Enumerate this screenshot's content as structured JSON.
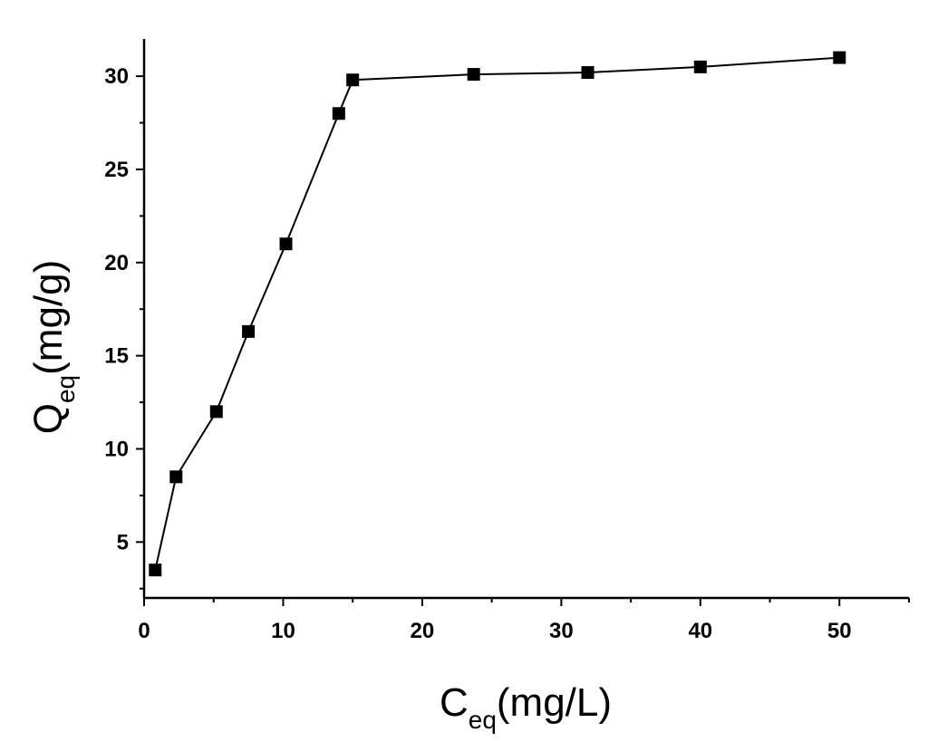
{
  "chart_data": {
    "type": "line",
    "xlabel": {
      "main": "C",
      "sub": "eq",
      "unit": "(mg/L)"
    },
    "ylabel": {
      "main": "Q",
      "sub": "eq",
      "unit": "(mg/g)"
    },
    "xlim": [
      0,
      55
    ],
    "ylim": [
      2,
      32
    ],
    "xticks": [
      0,
      10,
      20,
      30,
      40,
      50
    ],
    "yticks": [
      5,
      10,
      15,
      20,
      25,
      30
    ],
    "grid": false,
    "marker": "square",
    "color": "#000000",
    "series": [
      {
        "x": [
          0.8,
          2.3,
          5.2,
          7.5,
          10.2,
          14.0,
          15.0,
          23.7,
          31.9,
          40.0,
          50.0
        ],
        "y": [
          3.5,
          8.5,
          12.0,
          16.3,
          21.0,
          28.0,
          29.8,
          30.1,
          30.2,
          30.5,
          31.0
        ]
      }
    ]
  }
}
